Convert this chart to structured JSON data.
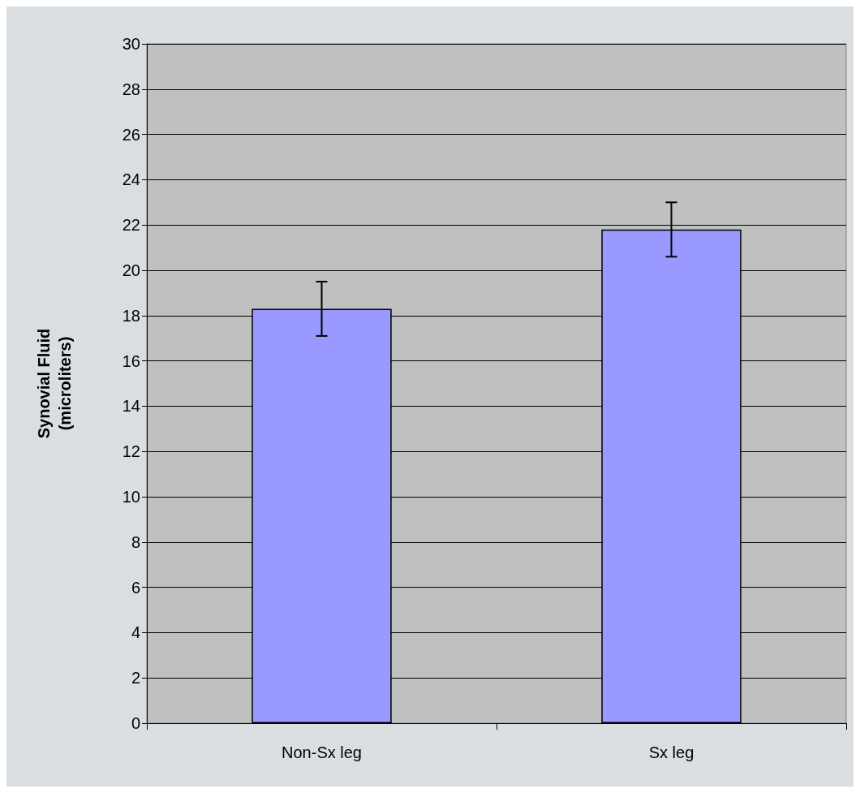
{
  "chart_data": {
    "type": "bar",
    "ylabel": "Synovial Fluid\n(microliters)",
    "categories": [
      "Non-Sx leg",
      "Sx leg"
    ],
    "values": [
      18.3,
      21.8
    ],
    "errors": [
      1.2,
      1.2
    ],
    "color": "#9999ff",
    "ylim": [
      0,
      30
    ],
    "yticks": [
      0,
      2,
      4,
      6,
      8,
      10,
      12,
      14,
      16,
      18,
      20,
      22,
      24,
      26,
      28,
      30
    ],
    "grid": "y"
  }
}
